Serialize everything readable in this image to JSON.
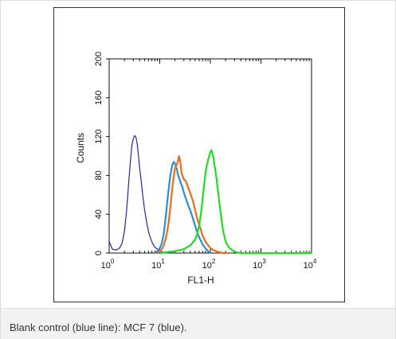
{
  "chart_data": {
    "type": "line",
    "xlabel": "FL1-H",
    "ylabel": "Counts",
    "x_scale": "log",
    "xlim": [
      1,
      10000
    ],
    "ylim": [
      0,
      200
    ],
    "x_ticks": [
      {
        "value": 1,
        "base": "10",
        "exp": "0"
      },
      {
        "value": 10,
        "base": "10",
        "exp": "1"
      },
      {
        "value": 100,
        "base": "10",
        "exp": "2"
      },
      {
        "value": 1000,
        "base": "10",
        "exp": "3"
      },
      {
        "value": 10000,
        "base": "10",
        "exp": "4"
      }
    ],
    "y_ticks": [
      "0",
      "40",
      "80",
      "120",
      "160",
      "200"
    ],
    "grid": false,
    "legend": "none",
    "series": [
      {
        "color": "#2424b0",
        "x": [
          1.0,
          1.15,
          1.35,
          1.6,
          1.8,
          2.0,
          2.2,
          2.4,
          2.6,
          2.8,
          3.0,
          3.2,
          3.4,
          3.6,
          3.8,
          4.0,
          4.3,
          4.6,
          5.0,
          5.5,
          6.0,
          6.6,
          7.2,
          8.0,
          9.0,
          10.0,
          11.5,
          13.0,
          15.0,
          18.0,
          20.0
        ],
        "y": [
          12,
          4,
          3,
          5,
          10,
          22,
          42,
          68,
          92,
          110,
          118,
          121,
          119,
          112,
          100,
          88,
          74,
          60,
          45,
          32,
          22,
          15,
          10,
          6,
          4,
          2,
          1,
          1,
          0,
          0,
          0
        ]
      },
      {
        "color": "#2a8fd6",
        "x": [
          8.0,
          9.0,
          10.0,
          11.0,
          12.0,
          13.0,
          14.0,
          15.0,
          16.0,
          17.0,
          18.0,
          19.0,
          20.0,
          21.0,
          22.0,
          23.0,
          24.0,
          26.0,
          28.0,
          30.0,
          33.0,
          36.0,
          40.0,
          45.0,
          50.0,
          56.0,
          63.0,
          70.0,
          80.0,
          90.0,
          100.0
        ],
        "y": [
          0,
          2,
          5,
          10,
          20,
          35,
          52,
          66,
          78,
          86,
          92,
          94,
          92,
          88,
          86,
          80,
          78,
          72,
          68,
          62,
          56,
          50,
          44,
          36,
          28,
          20,
          14,
          9,
          5,
          2,
          0
        ]
      },
      {
        "color": "#f06a1c",
        "x": [
          9.0,
          10.0,
          11.0,
          12.0,
          13.0,
          14.0,
          15.0,
          16.0,
          17.0,
          18.0,
          19.0,
          20.0,
          21.0,
          22.0,
          23.0,
          24.0,
          25.0,
          26.0,
          27.0,
          28.0,
          30.0,
          33.0,
          36.0,
          40.0,
          45.0,
          50.0,
          56.0,
          63.0,
          70.0,
          80.0,
          90.0,
          100.0,
          115.0,
          130.0,
          150.0,
          180.0,
          220.0
        ],
        "y": [
          0,
          2,
          4,
          8,
          14,
          22,
          32,
          45,
          58,
          70,
          80,
          87,
          90,
          92,
          95,
          100,
          96,
          90,
          82,
          80,
          76,
          74,
          68,
          62,
          54,
          44,
          34,
          26,
          18,
          12,
          8,
          5,
          3,
          2,
          1,
          0,
          0
        ]
      },
      {
        "color": "#22dd22",
        "x": [
          10.0,
          20.0,
          30.0,
          40.0,
          45.0,
          50.0,
          55.0,
          60.0,
          65.0,
          70.0,
          75.0,
          80.0,
          85.0,
          90.0,
          95.0,
          100.0,
          105.0,
          110.0,
          115.0,
          120.0,
          130.0,
          140.0,
          150.0,
          165.0,
          180.0,
          200.0,
          230.0,
          270.0,
          320.0,
          400.0,
          500.0,
          700.0,
          1000.0,
          5000.0,
          10000.0
        ],
        "y": [
          0,
          2,
          4,
          8,
          11,
          14,
          20,
          28,
          40,
          55,
          70,
          82,
          90,
          96,
          100,
          104,
          106,
          103,
          98,
          92,
          80,
          66,
          52,
          36,
          22,
          12,
          6,
          3,
          1,
          0,
          0,
          0,
          0,
          0,
          0
        ]
      }
    ]
  },
  "caption": "Blank control (blue line): MCF 7 (blue)."
}
